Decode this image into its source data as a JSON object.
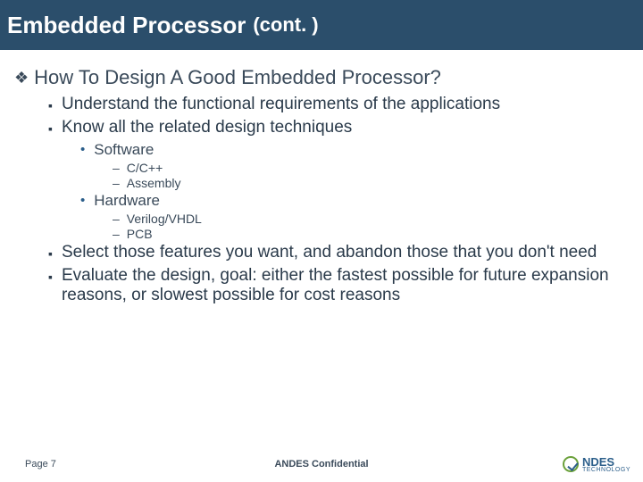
{
  "title": {
    "main": "Embedded Processor",
    "cont": "(cont. )"
  },
  "heading": "How To Design A Good Embedded Processor?",
  "bullets_l2a": [
    "Understand the functional requirements of the applications",
    "Know all the related design techniques"
  ],
  "software": {
    "label": "Software",
    "items": [
      "C/C++",
      "Assembly"
    ]
  },
  "hardware": {
    "label": "Hardware",
    "items": [
      "Verilog/VHDL",
      "PCB"
    ]
  },
  "bullets_l2b": [
    "Select those features you want, and abandon those that you don't need",
    "Evaluate the design, goal: either the fastest possible for future expansion reasons, or slowest possible for cost reasons"
  ],
  "footer": {
    "page": "Page 7",
    "confidential": "ANDES Confidential",
    "logo_name": "NDES",
    "logo_sub": "TECHNOLOGY"
  },
  "colors": {
    "titlebar_bg": "#2b4e6b",
    "text": "#3a4a5a",
    "accent": "#2b5e8a",
    "logo_green": "#6aa03a"
  }
}
